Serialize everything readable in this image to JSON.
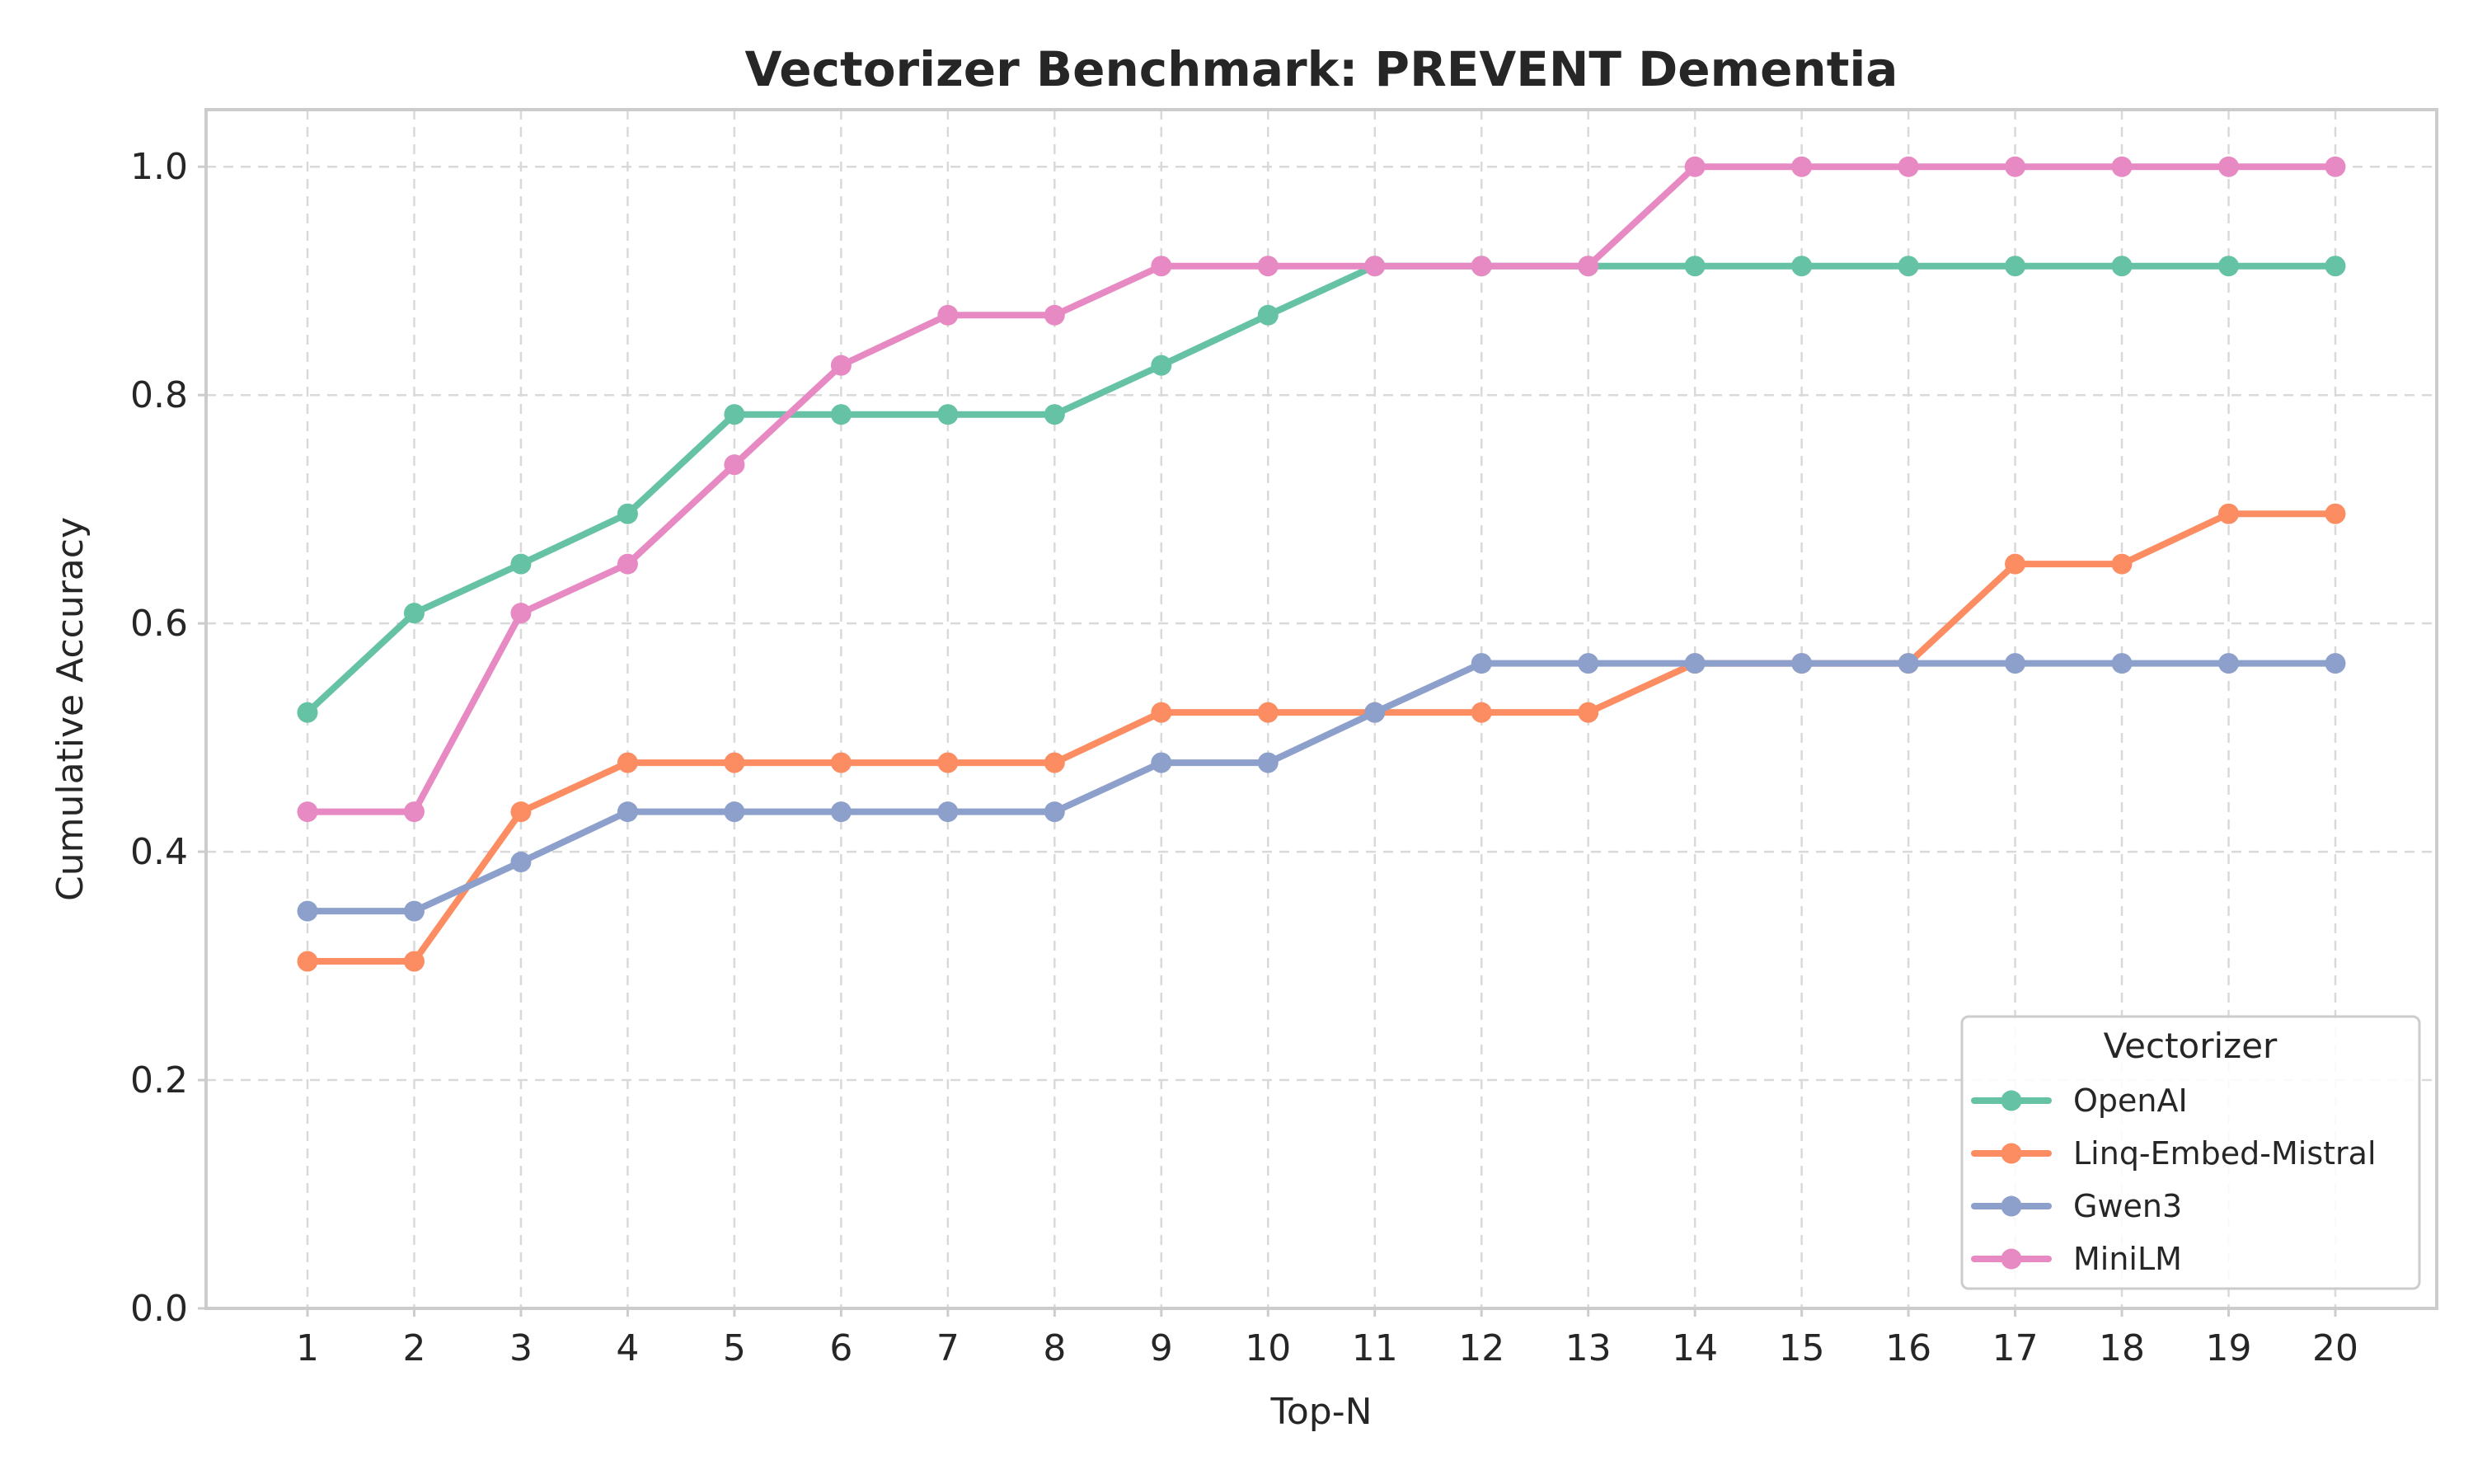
{
  "chart_data": {
    "type": "line",
    "title": "Vectorizer Benchmark: PREVENT Dementia",
    "xlabel": "Top-N",
    "ylabel": "Cumulative Accuracy",
    "x": [
      1,
      2,
      3,
      4,
      5,
      6,
      7,
      8,
      9,
      10,
      11,
      12,
      13,
      14,
      15,
      16,
      17,
      18,
      19,
      20
    ],
    "x_tick_labels": [
      "1",
      "2",
      "3",
      "4",
      "5",
      "6",
      "7",
      "8",
      "9",
      "10",
      "11",
      "12",
      "13",
      "14",
      "15",
      "16",
      "17",
      "18",
      "19",
      "20"
    ],
    "xlim": [
      0.05,
      20.95
    ],
    "ylim": [
      0.0,
      1.05
    ],
    "y_ticks": [
      0.0,
      0.2,
      0.4,
      0.6,
      0.8,
      1.0
    ],
    "y_tick_labels": [
      "0.0",
      "0.2",
      "0.4",
      "0.6",
      "0.8",
      "1.0"
    ],
    "grid": true,
    "legend": {
      "title": "Vectorizer",
      "placement": "lower-right"
    },
    "series": [
      {
        "name": "OpenAI",
        "color": "#66c2a5",
        "values": [
          0.522,
          0.609,
          0.652,
          0.696,
          0.783,
          0.783,
          0.783,
          0.783,
          0.826,
          0.87,
          0.913,
          0.913,
          0.913,
          0.913,
          0.913,
          0.913,
          0.913,
          0.913,
          0.913,
          0.913
        ]
      },
      {
        "name": "Linq-Embed-Mistral",
        "color": "#fc8d62",
        "values": [
          0.304,
          0.304,
          0.435,
          0.478,
          0.478,
          0.478,
          0.478,
          0.478,
          0.522,
          0.522,
          0.522,
          0.522,
          0.522,
          0.565,
          0.565,
          0.565,
          0.652,
          0.652,
          0.696,
          0.696
        ]
      },
      {
        "name": "Gwen3",
        "color": "#8da0cb",
        "values": [
          0.348,
          0.348,
          0.391,
          0.435,
          0.435,
          0.435,
          0.435,
          0.435,
          0.478,
          0.478,
          0.522,
          0.565,
          0.565,
          0.565,
          0.565,
          0.565,
          0.565,
          0.565,
          0.565,
          0.565
        ]
      },
      {
        "name": "MiniLM",
        "color": "#e78ac3",
        "values": [
          0.435,
          0.435,
          0.609,
          0.652,
          0.739,
          0.826,
          0.87,
          0.87,
          0.913,
          0.913,
          0.913,
          0.913,
          0.913,
          1.0,
          1.0,
          1.0,
          1.0,
          1.0,
          1.0,
          1.0
        ]
      }
    ]
  }
}
